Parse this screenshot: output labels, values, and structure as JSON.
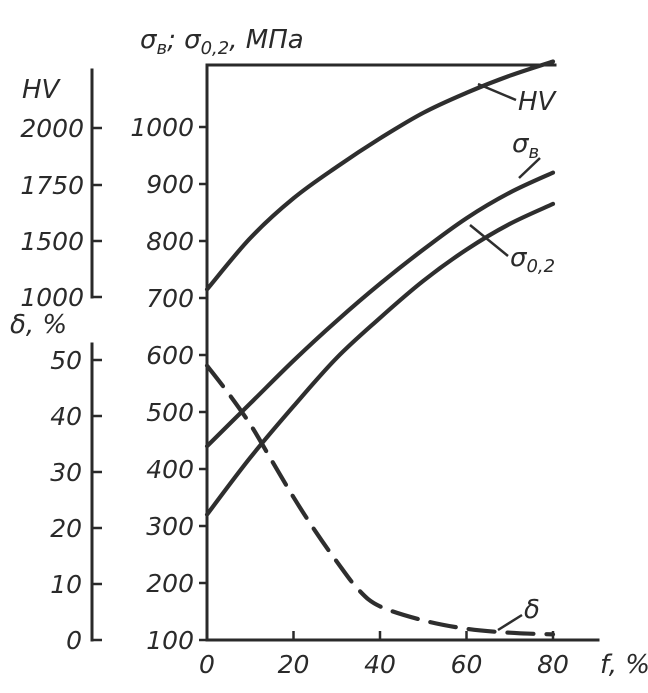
{
  "chart_data": {
    "type": "line",
    "title": "",
    "x": {
      "label": "f, %",
      "ticks": [
        0,
        20,
        40,
        60,
        80
      ],
      "tick_labels": [
        "0",
        "20",
        "40",
        "60",
        "80"
      ],
      "range": [
        0,
        80
      ]
    },
    "axes": {
      "strength": {
        "label_parts": [
          "σ",
          "в",
          "; σ",
          "0,2",
          ", МПа"
        ],
        "ticks": [
          100,
          200,
          300,
          400,
          500,
          600,
          700,
          800,
          900,
          1000
        ],
        "tick_labels": [
          "100",
          "200",
          "300",
          "400",
          "500",
          "600",
          "700",
          "800",
          "900",
          "1000"
        ],
        "range": [
          100,
          1000
        ]
      },
      "hardness": {
        "label": "HV",
        "tick_values": [
          1000,
          1500,
          1750,
          2000
        ],
        "tick_labels": [
          "1000",
          "1500",
          "1750",
          "2000"
        ]
      },
      "elongation": {
        "label": "δ, %",
        "ticks": [
          0,
          10,
          20,
          30,
          40,
          50
        ],
        "tick_labels": [
          "0",
          "10",
          "20",
          "30",
          "40",
          "50"
        ],
        "range": [
          0,
          50
        ]
      }
    },
    "series": [
      {
        "name": "HV",
        "axis": "strength",
        "style": "solid",
        "x": [
          0,
          10,
          20,
          30,
          40,
          50,
          60,
          70,
          80
        ],
        "values": [
          715,
          805,
          875,
          930,
          980,
          1025,
          1060,
          1090,
          1115
        ]
      },
      {
        "name_parts": [
          "σ",
          "в"
        ],
        "axis": "strength",
        "style": "solid",
        "x": [
          0,
          10,
          20,
          30,
          40,
          50,
          60,
          70,
          80
        ],
        "values": [
          440,
          515,
          590,
          660,
          725,
          785,
          840,
          885,
          920
        ]
      },
      {
        "name_parts": [
          "σ",
          "0,2"
        ],
        "axis": "strength",
        "style": "solid",
        "x": [
          0,
          10,
          20,
          30,
          40,
          50,
          60,
          70,
          80
        ],
        "values": [
          320,
          420,
          510,
          595,
          665,
          730,
          785,
          830,
          865
        ]
      },
      {
        "name": "δ",
        "axis": "elongation",
        "style": "dashed",
        "x": [
          0,
          5,
          10,
          15,
          20,
          25,
          30,
          35,
          40,
          50,
          60,
          70,
          80
        ],
        "values": [
          49,
          44,
          38.5,
          32,
          25.5,
          19.5,
          14,
          9,
          6,
          3.5,
          2,
          1.3,
          1
        ]
      }
    ],
    "grid": false,
    "legend": "none",
    "colors": {
      "ink": "#2e2e2e",
      "background": "#ffffff"
    }
  }
}
